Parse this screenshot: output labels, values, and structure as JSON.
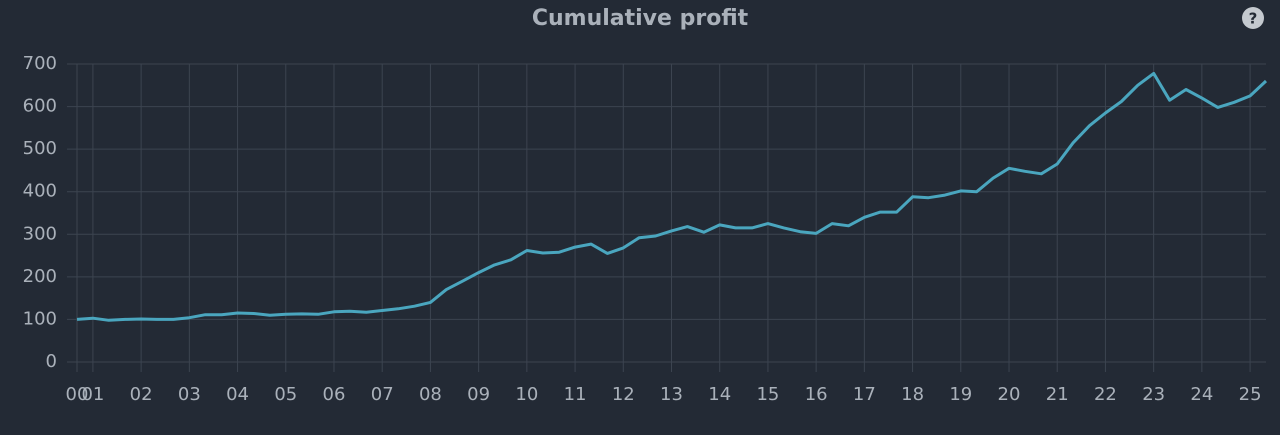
{
  "toolbar": {
    "help": "?"
  },
  "chart_data": {
    "type": "line",
    "title": "Cumulative profit",
    "x": [
      2000.67,
      2001,
      2001.33,
      2001.67,
      2002,
      2002.33,
      2002.67,
      2003,
      2003.33,
      2003.67,
      2004,
      2004.33,
      2004.67,
      2005,
      2005.33,
      2005.67,
      2006,
      2006.33,
      2006.67,
      2007,
      2007.33,
      2007.67,
      2008,
      2008.33,
      2008.67,
      2009,
      2009.33,
      2009.67,
      2010,
      2010.33,
      2010.67,
      2011,
      2011.33,
      2011.67,
      2012,
      2012.33,
      2012.67,
      2013,
      2013.33,
      2013.67,
      2014,
      2014.33,
      2014.67,
      2015,
      2015.33,
      2015.67,
      2016,
      2016.33,
      2016.67,
      2017,
      2017.33,
      2017.67,
      2018,
      2018.33,
      2018.67,
      2019,
      2019.33,
      2019.67,
      2020,
      2020.33,
      2020.67,
      2021,
      2021.33,
      2021.67,
      2022,
      2022.33,
      2022.67,
      2023,
      2023.33,
      2023.67,
      2024,
      2024.33,
      2024.67,
      2025,
      2025.33
    ],
    "values": [
      100,
      103,
      98,
      100,
      101,
      100,
      100,
      104,
      111,
      111,
      115,
      114,
      110,
      112,
      113,
      112,
      118,
      119,
      117,
      121,
      125,
      131,
      140,
      170,
      190,
      210,
      228,
      240,
      262,
      256,
      258,
      270,
      277,
      255,
      268,
      292,
      296,
      308,
      318,
      305,
      322,
      315,
      315,
      325,
      315,
      306,
      302,
      325,
      320,
      340,
      352,
      352,
      388,
      386,
      392,
      402,
      400,
      432,
      455,
      448,
      442,
      465,
      515,
      555,
      585,
      612,
      650,
      678,
      615,
      640,
      620,
      598,
      610,
      625,
      660
    ],
    "color": "#4aa6bf",
    "xlim": [
      2000.67,
      2025.33
    ],
    "xticks": [
      {
        "value": 2000.67,
        "label": "00"
      },
      {
        "value": 2001,
        "label": "01"
      },
      {
        "value": 2002,
        "label": "02"
      },
      {
        "value": 2003,
        "label": "03"
      },
      {
        "value": 2004,
        "label": "04"
      },
      {
        "value": 2005,
        "label": "05"
      },
      {
        "value": 2006,
        "label": "06"
      },
      {
        "value": 2007,
        "label": "07"
      },
      {
        "value": 2008,
        "label": "08"
      },
      {
        "value": 2009,
        "label": "09"
      },
      {
        "value": 2010,
        "label": "10"
      },
      {
        "value": 2011,
        "label": "11"
      },
      {
        "value": 2012,
        "label": "12"
      },
      {
        "value": 2013,
        "label": "13"
      },
      {
        "value": 2014,
        "label": "14"
      },
      {
        "value": 2015,
        "label": "15"
      },
      {
        "value": 2016,
        "label": "16"
      },
      {
        "value": 2017,
        "label": "17"
      },
      {
        "value": 2018,
        "label": "18"
      },
      {
        "value": 2019,
        "label": "19"
      },
      {
        "value": 2020,
        "label": "20"
      },
      {
        "value": 2021,
        "label": "21"
      },
      {
        "value": 2022,
        "label": "22"
      },
      {
        "value": 2023,
        "label": "23"
      },
      {
        "value": 2024,
        "label": "24"
      },
      {
        "value": 2025,
        "label": "25"
      }
    ],
    "ylim": [
      0,
      700
    ],
    "yticks": [
      0,
      100,
      200,
      300,
      400,
      500,
      600,
      700
    ],
    "grid": true
  }
}
